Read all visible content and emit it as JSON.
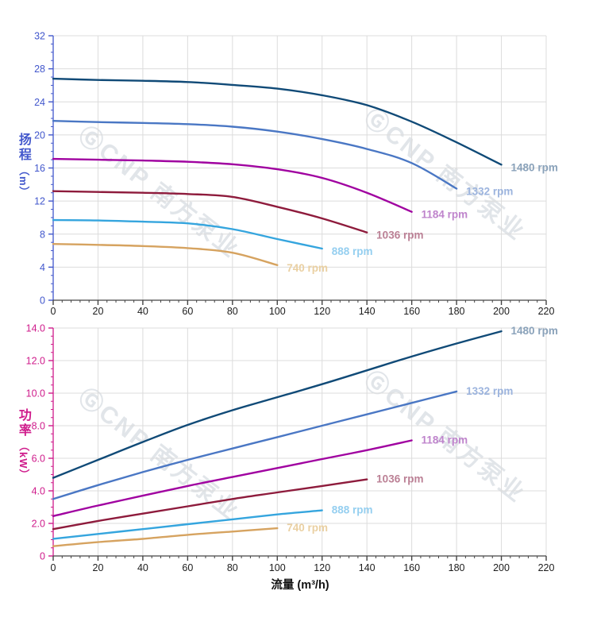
{
  "watermark": {
    "text": "ⒼCNP 南方泵业",
    "color": "#b9c2cd"
  },
  "chart_data": [
    {
      "type": "line",
      "name": "head-chart",
      "title": "",
      "ylabel_cjk": "扬程",
      "ylabel_unit": "（m）",
      "xlabel": "",
      "xlim": [
        0,
        220
      ],
      "ylim": [
        0,
        32
      ],
      "x_tick_step": 20,
      "x_minor_step": 4,
      "y_tick_step": 4,
      "y_minor_step": 1,
      "x_tick_labels": [
        "0",
        "20",
        "40",
        "60",
        "80",
        "100",
        "120",
        "140",
        "160",
        "180",
        "200",
        "220"
      ],
      "y_tick_labels": [
        "0",
        "4",
        "8",
        "12",
        "16",
        "20",
        "24",
        "28",
        "32"
      ],
      "grid": true,
      "grid_color": "#dcdcdc",
      "y_axis_color": "#4257cc",
      "x_axis_color": "#444444",
      "x_tick_label_color": "#1c1c1c",
      "legend_position": "end-of-curve",
      "series": [
        {
          "name": "1480 rpm",
          "color": "#104a77",
          "label_color": "#8aa2ba",
          "x": [
            0,
            20,
            40,
            60,
            80,
            100,
            120,
            140,
            160,
            180,
            200
          ],
          "y": [
            26.8,
            26.65,
            26.55,
            26.4,
            26.05,
            25.6,
            24.8,
            23.6,
            21.6,
            19.1,
            16.4
          ]
        },
        {
          "name": "1332 rpm",
          "color": "#4a77c4",
          "label_color": "#9cb4de",
          "x": [
            0,
            20,
            40,
            60,
            80,
            100,
            120,
            140,
            160,
            180
          ],
          "y": [
            21.7,
            21.55,
            21.45,
            21.3,
            21.0,
            20.4,
            19.5,
            18.3,
            16.6,
            13.5
          ]
        },
        {
          "name": "1184 rpm",
          "color": "#a002a0",
          "label_color": "#bf84cc",
          "x": [
            0,
            20,
            40,
            60,
            80,
            100,
            120,
            140,
            160
          ],
          "y": [
            17.1,
            17.0,
            16.9,
            16.75,
            16.45,
            15.85,
            14.8,
            13.0,
            10.7
          ]
        },
        {
          "name": "1036 rpm",
          "color": "#8e1b3c",
          "label_color": "#bb8095",
          "x": [
            0,
            20,
            40,
            60,
            80,
            100,
            120,
            140
          ],
          "y": [
            13.2,
            13.1,
            13.0,
            12.85,
            12.5,
            11.3,
            9.9,
            8.2
          ]
        },
        {
          "name": "888 rpm",
          "color": "#35a5de",
          "label_color": "#95cff0",
          "x": [
            0,
            20,
            40,
            60,
            80,
            100,
            120
          ],
          "y": [
            9.7,
            9.65,
            9.5,
            9.3,
            8.6,
            7.4,
            6.25
          ]
        },
        {
          "name": "740 rpm",
          "color": "#d6a360",
          "label_color": "#ead0a2",
          "x": [
            0,
            20,
            40,
            60,
            80,
            100
          ],
          "y": [
            6.8,
            6.7,
            6.55,
            6.3,
            5.75,
            4.25
          ]
        }
      ]
    },
    {
      "type": "line",
      "name": "power-chart",
      "title": "",
      "ylabel_cjk": "功率",
      "ylabel_unit": "（kW）",
      "xlabel": "流量 (m³/h)",
      "xlim": [
        0,
        220
      ],
      "ylim": [
        0,
        14
      ],
      "x_tick_step": 20,
      "x_minor_step": 4,
      "y_tick_step": 2,
      "y_minor_step": 0.5,
      "x_tick_labels": [
        "0",
        "20",
        "40",
        "60",
        "80",
        "100",
        "120",
        "140",
        "160",
        "180",
        "200",
        "220"
      ],
      "y_tick_labels": [
        "0",
        "2.0",
        "4.0",
        "6.0",
        "8.0",
        "10.0",
        "12.0",
        "14.0"
      ],
      "grid": true,
      "grid_color": "#dcdcdc",
      "y_axis_color": "#cf1b8b",
      "x_axis_color": "#444444",
      "x_tick_label_color": "#1c1c1c",
      "legend_position": "end-of-curve",
      "series": [
        {
          "name": "1480 rpm",
          "color": "#104a77",
          "label_color": "#8aa2ba",
          "x": [
            0,
            20,
            40,
            60,
            80,
            100,
            120,
            140,
            160,
            180,
            200
          ],
          "y": [
            4.8,
            5.9,
            7.0,
            8.05,
            8.95,
            9.75,
            10.55,
            11.4,
            12.25,
            13.05,
            13.8
          ]
        },
        {
          "name": "1332 rpm",
          "color": "#4a77c4",
          "label_color": "#9cb4de",
          "x": [
            0,
            20,
            40,
            60,
            80,
            100,
            120,
            140,
            160,
            180
          ],
          "y": [
            3.5,
            4.35,
            5.15,
            5.9,
            6.6,
            7.3,
            8.0,
            8.7,
            9.4,
            10.1
          ]
        },
        {
          "name": "1184 rpm",
          "color": "#a002a0",
          "label_color": "#bf84cc",
          "x": [
            0,
            20,
            40,
            60,
            80,
            100,
            120,
            140,
            160
          ],
          "y": [
            2.45,
            3.1,
            3.7,
            4.3,
            4.85,
            5.4,
            5.95,
            6.5,
            7.1
          ]
        },
        {
          "name": "1036 rpm",
          "color": "#8e1b3c",
          "label_color": "#bb8095",
          "x": [
            0,
            20,
            40,
            60,
            80,
            100,
            120,
            140
          ],
          "y": [
            1.65,
            2.15,
            2.6,
            3.05,
            3.5,
            3.9,
            4.3,
            4.7
          ]
        },
        {
          "name": "888 rpm",
          "color": "#35a5de",
          "label_color": "#95cff0",
          "x": [
            0,
            20,
            40,
            60,
            80,
            100,
            120
          ],
          "y": [
            1.05,
            1.35,
            1.65,
            1.95,
            2.25,
            2.55,
            2.8
          ]
        },
        {
          "name": "740 rpm",
          "color": "#d6a360",
          "label_color": "#ead0a2",
          "x": [
            0,
            20,
            40,
            60,
            80,
            100
          ],
          "y": [
            0.6,
            0.85,
            1.05,
            1.3,
            1.5,
            1.7
          ]
        }
      ]
    }
  ]
}
